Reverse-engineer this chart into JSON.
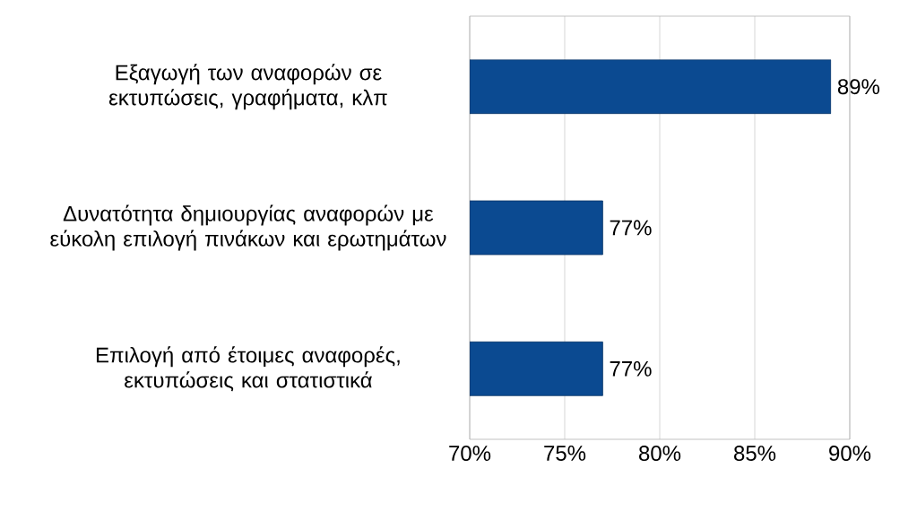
{
  "chart_data": {
    "type": "bar",
    "orientation": "horizontal",
    "categories": [
      "Εξαγωγή των αναφορών σε εκτυπώσεις, γραφήματα, κλπ",
      "Δυνατότητα δημιουργίας αναφορών με εύκολη επιλογή πινάκων και ερωτημάτων",
      "Επιλογή από έτοιμες αναφορές, εκτυπώσεις και στατιστικά"
    ],
    "values": [
      89,
      77,
      77
    ],
    "value_labels": [
      "89%",
      "77%",
      "77%"
    ],
    "color": "#0b4a91",
    "xlim": [
      70,
      90
    ],
    "xticks": [
      {
        "value": 70,
        "label": "70%"
      },
      {
        "value": 75,
        "label": "75%"
      },
      {
        "value": 80,
        "label": "80%"
      },
      {
        "value": 85,
        "label": "85%"
      },
      {
        "value": 90,
        "label": "90%"
      }
    ],
    "grid": "x"
  }
}
